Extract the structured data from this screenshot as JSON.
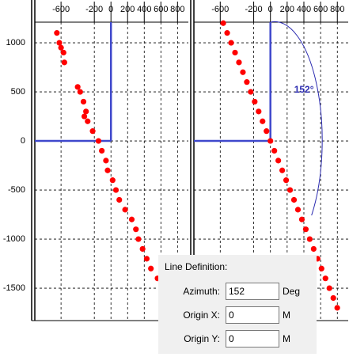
{
  "chart_data": [
    {
      "type": "scatter",
      "color": "#ff0000",
      "grid": true,
      "xlim": [
        -915,
        930
      ],
      "ylim": [
        -1830,
        1210
      ],
      "xticks": [
        -600,
        -200,
        0,
        200,
        400,
        600,
        800
      ],
      "yticks": [
        1000,
        500,
        0,
        -500,
        -1000,
        -1500
      ],
      "x": [
        -650,
        -620,
        -600,
        -570,
        -560,
        -400,
        -370,
        -330,
        -300,
        -320,
        -280,
        -220,
        -150,
        -110,
        -60,
        -40,
        20,
        60,
        100,
        170,
        250,
        300,
        330,
        380,
        430,
        480,
        560
      ],
      "y": [
        1100,
        1000,
        950,
        900,
        800,
        550,
        500,
        400,
        300,
        250,
        200,
        100,
        0,
        -100,
        -200,
        -300,
        -400,
        -500,
        -600,
        -700,
        -800,
        -900,
        -1000,
        -1100,
        -1200,
        -1300,
        -1400
      ]
    },
    {
      "type": "scatter",
      "color": "#ff0000",
      "grid": true,
      "xlim": [
        -915,
        930
      ],
      "ylim": [
        -1830,
        1210
      ],
      "xticks": [
        -600,
        -200,
        0,
        200,
        400,
        600,
        800
      ],
      "yticks": [
        1000,
        500,
        0,
        -500,
        -1000,
        -1500
      ],
      "annotation": "152°",
      "x": [
        -564,
        -517,
        -470,
        -423,
        -376,
        -329,
        -282,
        -235,
        -188,
        -141,
        -94,
        -47,
        0,
        47,
        94,
        141,
        188,
        235,
        282,
        329,
        376,
        423,
        470,
        517,
        564,
        611,
        658,
        705,
        752,
        799
      ],
      "y": [
        1200,
        1100,
        1000,
        900,
        800,
        700,
        600,
        500,
        400,
        300,
        200,
        100,
        0,
        -100,
        -200,
        -300,
        -400,
        -500,
        -600,
        -700,
        -800,
        -900,
        -1000,
        -1100,
        -1200,
        -1300,
        -1400,
        -1500,
        -1600,
        -1700
      ]
    }
  ],
  "dialog": {
    "title": "Line Definition:",
    "fields": [
      {
        "label": "Azimuth:",
        "value": "152",
        "unit": "Deg"
      },
      {
        "label": "Origin X:",
        "value": "0",
        "unit": "M"
      },
      {
        "label": "Origin Y:",
        "value": "0",
        "unit": "M"
      }
    ]
  }
}
